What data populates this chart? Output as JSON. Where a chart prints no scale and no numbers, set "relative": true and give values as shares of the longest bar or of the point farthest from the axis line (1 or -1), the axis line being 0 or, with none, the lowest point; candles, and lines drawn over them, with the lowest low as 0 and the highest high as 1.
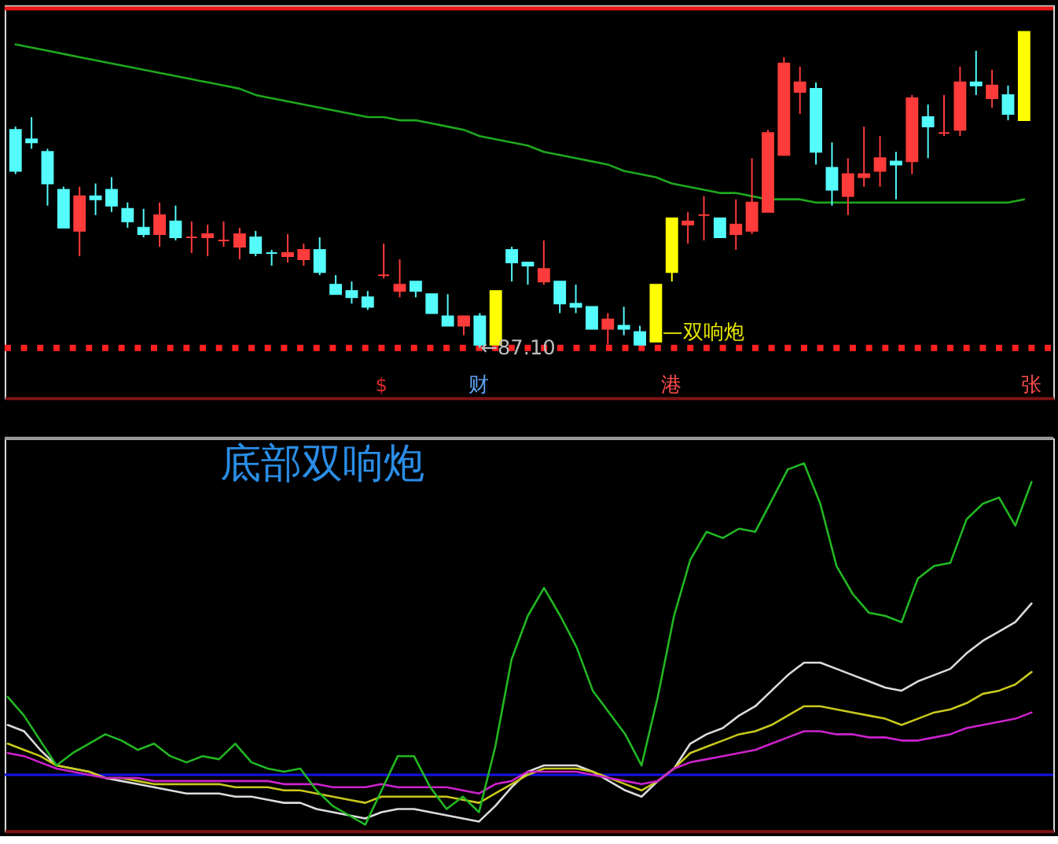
{
  "chart_data": [
    {
      "type": "candlestick",
      "relative": true,
      "tick_labels": false,
      "categories": [
        null,
        null,
        null,
        null,
        null,
        null,
        null,
        null,
        null,
        null,
        null,
        null,
        null,
        null,
        null,
        null,
        null,
        null,
        null,
        null,
        null,
        null,
        null,
        null,
        null,
        null,
        null,
        null,
        null,
        null,
        null,
        null,
        null,
        null,
        null,
        null,
        null,
        null,
        null,
        null,
        null,
        null,
        null,
        null,
        null,
        null,
        null,
        null,
        null,
        null,
        null,
        null,
        null,
        null,
        null,
        null,
        null,
        null,
        null,
        null,
        null,
        null,
        null,
        null
      ],
      "ohlc": [
        [
          0.69,
          0.7,
          0.55,
          0.56
        ],
        [
          0.66,
          0.73,
          0.63,
          0.65
        ],
        [
          0.62,
          0.63,
          0.45,
          0.52
        ],
        [
          0.5,
          0.51,
          0.38,
          0.38
        ],
        [
          0.37,
          0.51,
          0.29,
          0.48
        ],
        [
          0.48,
          0.52,
          0.42,
          0.47
        ],
        [
          0.5,
          0.54,
          0.43,
          0.45
        ],
        [
          0.44,
          0.46,
          0.38,
          0.4
        ],
        [
          0.38,
          0.44,
          0.35,
          0.36
        ],
        [
          0.36,
          0.46,
          0.32,
          0.42
        ],
        [
          0.4,
          0.45,
          0.34,
          0.35
        ],
        [
          0.35,
          0.4,
          0.3,
          0.35
        ],
        [
          0.35,
          0.39,
          0.29,
          0.36
        ],
        [
          0.34,
          0.4,
          0.32,
          0.34
        ],
        [
          0.32,
          0.38,
          0.28,
          0.36
        ],
        [
          0.35,
          0.37,
          0.29,
          0.3
        ],
        [
          0.3,
          0.31,
          0.26,
          0.3
        ],
        [
          0.29,
          0.36,
          0.27,
          0.3
        ],
        [
          0.28,
          0.33,
          0.26,
          0.31
        ],
        [
          0.31,
          0.35,
          0.23,
          0.24
        ],
        [
          0.2,
          0.23,
          0.17,
          0.17
        ],
        [
          0.18,
          0.21,
          0.14,
          0.16
        ],
        [
          0.16,
          0.18,
          0.12,
          0.13
        ],
        [
          0.23,
          0.33,
          0.22,
          0.23
        ],
        [
          0.18,
          0.28,
          0.16,
          0.2
        ],
        [
          0.21,
          0.21,
          0.16,
          0.18
        ],
        [
          0.17,
          0.17,
          0.11,
          0.11
        ],
        [
          0.1,
          0.17,
          0.07,
          0.07
        ],
        [
          0.07,
          0.1,
          0.04,
          0.1
        ],
        [
          0.1,
          0.11,
          0.0,
          0.01
        ],
        [
          0.01,
          0.18,
          0.01,
          0.18
        ],
        [
          0.31,
          0.32,
          0.21,
          0.27
        ],
        [
          0.27,
          0.27,
          0.2,
          0.26
        ],
        [
          0.21,
          0.34,
          0.2,
          0.25
        ],
        [
          0.21,
          0.21,
          0.11,
          0.14
        ],
        [
          0.14,
          0.2,
          0.11,
          0.13
        ],
        [
          0.13,
          0.13,
          0.06,
          0.06
        ],
        [
          0.06,
          0.11,
          0.01,
          0.09
        ],
        [
          0.07,
          0.13,
          0.04,
          0.06
        ],
        [
          0.05,
          0.07,
          0.01,
          0.01
        ],
        [
          0.02,
          0.2,
          0.02,
          0.2
        ],
        [
          0.24,
          0.41,
          0.21,
          0.41
        ],
        [
          0.39,
          0.43,
          0.33,
          0.4
        ],
        [
          0.42,
          0.48,
          0.34,
          0.42
        ],
        [
          0.41,
          0.41,
          0.35,
          0.35
        ],
        [
          0.36,
          0.47,
          0.31,
          0.39
        ],
        [
          0.37,
          0.6,
          0.36,
          0.46
        ],
        [
          0.43,
          0.69,
          0.43,
          0.68
        ],
        [
          0.61,
          0.92,
          0.61,
          0.9
        ],
        [
          0.81,
          0.89,
          0.74,
          0.84
        ],
        [
          0.82,
          0.84,
          0.58,
          0.62
        ],
        [
          0.57,
          0.65,
          0.45,
          0.5
        ],
        [
          0.48,
          0.6,
          0.42,
          0.55
        ],
        [
          0.54,
          0.7,
          0.51,
          0.55
        ],
        [
          0.56,
          0.67,
          0.51,
          0.6
        ],
        [
          0.59,
          0.62,
          0.47,
          0.58
        ],
        [
          0.59,
          0.8,
          0.55,
          0.79
        ],
        [
          0.73,
          0.77,
          0.6,
          0.7
        ],
        [
          0.68,
          0.8,
          0.67,
          0.68
        ],
        [
          0.69,
          0.89,
          0.67,
          0.84
        ],
        [
          0.84,
          0.94,
          0.8,
          0.83
        ],
        [
          0.79,
          0.88,
          0.76,
          0.83
        ],
        [
          0.8,
          0.83,
          0.72,
          0.74
        ],
        [
          0.72,
          1.0,
          0.72,
          1.0
        ]
      ],
      "colors": [
        "#54fcfc",
        "#54fcfc",
        "#54fcfc",
        "#54fcfc",
        "#ff3b3b",
        "#54fcfc",
        "#54fcfc",
        "#54fcfc",
        "#54fcfc",
        "#ff3b3b",
        "#54fcfc",
        "#ff3b3b",
        "#ff3b3b",
        "#ff3b3b",
        "#ff3b3b",
        "#54fcfc",
        "#54fcfc",
        "#ff3b3b",
        "#ff3b3b",
        "#54fcfc",
        "#54fcfc",
        "#54fcfc",
        "#54fcfc",
        "#ff3b3b",
        "#ff3b3b",
        "#54fcfc",
        "#54fcfc",
        "#54fcfc",
        "#ff3b3b",
        "#54fcfc",
        "#ffff00",
        "#54fcfc",
        "#54fcfc",
        "#ff3b3b",
        "#54fcfc",
        "#54fcfc",
        "#54fcfc",
        "#ff3b3b",
        "#54fcfc",
        "#54fcfc",
        "#ffff00",
        "#ffff00",
        "#ff3b3b",
        "#ff3b3b",
        "#54fcfc",
        "#ff3b3b",
        "#ff3b3b",
        "#ff3b3b",
        "#ff3b3b",
        "#ff3b3b",
        "#54fcfc",
        "#54fcfc",
        "#ff3b3b",
        "#ff3b3b",
        "#ff3b3b",
        "#54fcfc",
        "#ff3b3b",
        "#54fcfc",
        "#ff3b3b",
        "#ff3b3b",
        "#54fcfc",
        "#ff3b3b",
        "#54fcfc",
        "#ffff00"
      ],
      "series": [
        {
          "type": "line",
          "color": "#1ea81e",
          "values": [
            0.96,
            0.95,
            0.94,
            0.93,
            0.92,
            0.91,
            0.9,
            0.89,
            0.88,
            0.87,
            0.86,
            0.85,
            0.84,
            0.83,
            0.82,
            0.8,
            0.79,
            0.78,
            0.77,
            0.76,
            0.75,
            0.74,
            0.73,
            0.73,
            0.72,
            0.72,
            0.71,
            0.7,
            0.69,
            0.67,
            0.66,
            0.65,
            0.64,
            0.62,
            0.61,
            0.6,
            0.59,
            0.58,
            0.56,
            0.55,
            0.54,
            0.52,
            0.51,
            0.5,
            0.49,
            0.49,
            0.48,
            0.47,
            0.47,
            0.47,
            0.46,
            0.46,
            0.46,
            0.46,
            0.46,
            0.46,
            0.46,
            0.46,
            0.46,
            0.46,
            0.46,
            0.46,
            0.46,
            0.47
          ]
        }
      ],
      "ref_lines": [
        {
          "axis": "y",
          "value": 0,
          "color": "#ff2020",
          "line_style": "dotted"
        }
      ],
      "annotations": [
        {
          "text": "←87.10",
          "y": 0
        },
        "—双响炮",
        "$",
        "财",
        "港",
        "张"
      ]
    },
    {
      "type": "line",
      "relative": true,
      "tick_labels": false,
      "categories": [
        null,
        null,
        null,
        null,
        null,
        null,
        null,
        null,
        null,
        null,
        null,
        null,
        null,
        null,
        null,
        null,
        null,
        null,
        null,
        null,
        null,
        null,
        null,
        null,
        null,
        null,
        null,
        null,
        null,
        null,
        null,
        null,
        null,
        null,
        null,
        null,
        null,
        null,
        null,
        null,
        null,
        null,
        null,
        null,
        null,
        null,
        null,
        null,
        null,
        null,
        null,
        null,
        null,
        null,
        null,
        null,
        null,
        null,
        null,
        null,
        null,
        null,
        null,
        null
      ],
      "series": [
        {
          "color": "#dcdcdc",
          "values": [
            0.16,
            0.14,
            0.08,
            0.03,
            0.02,
            0.01,
            -0.01,
            -0.02,
            -0.03,
            -0.04,
            -0.05,
            -0.06,
            -0.06,
            -0.06,
            -0.07,
            -0.07,
            -0.08,
            -0.09,
            -0.09,
            -0.11,
            -0.12,
            -0.13,
            -0.14,
            -0.12,
            -0.11,
            -0.11,
            -0.12,
            -0.13,
            -0.14,
            -0.15,
            -0.1,
            -0.04,
            0.01,
            0.03,
            0.03,
            0.03,
            0.01,
            -0.02,
            -0.05,
            -0.07,
            -0.02,
            0.02,
            0.1,
            0.13,
            0.15,
            0.19,
            0.22,
            0.27,
            0.32,
            0.36,
            0.36,
            0.34,
            0.32,
            0.3,
            0.28,
            0.27,
            0.3,
            0.32,
            0.34,
            0.39,
            0.43,
            0.46,
            0.49,
            0.55
          ]
        },
        {
          "color": "#c8c81e",
          "values": [
            0.1,
            0.08,
            0.06,
            0.03,
            0.02,
            0.01,
            -0.01,
            -0.01,
            -0.02,
            -0.03,
            -0.03,
            -0.03,
            -0.03,
            -0.03,
            -0.04,
            -0.04,
            -0.04,
            -0.05,
            -0.05,
            -0.06,
            -0.07,
            -0.08,
            -0.09,
            -0.07,
            -0.07,
            -0.07,
            -0.07,
            -0.07,
            -0.08,
            -0.09,
            -0.06,
            -0.03,
            0.0,
            0.02,
            0.02,
            0.02,
            0.01,
            -0.01,
            -0.03,
            -0.05,
            -0.02,
            0.02,
            0.07,
            0.09,
            0.11,
            0.13,
            0.14,
            0.16,
            0.19,
            0.22,
            0.22,
            0.21,
            0.2,
            0.19,
            0.18,
            0.16,
            0.18,
            0.2,
            0.21,
            0.23,
            0.26,
            0.27,
            0.29,
            0.33
          ]
        },
        {
          "color": "#cc22cc",
          "values": [
            0.07,
            0.06,
            0.04,
            0.02,
            0.01,
            0.0,
            -0.01,
            -0.01,
            -0.01,
            -0.02,
            -0.02,
            -0.02,
            -0.02,
            -0.02,
            -0.02,
            -0.02,
            -0.02,
            -0.03,
            -0.03,
            -0.03,
            -0.04,
            -0.04,
            -0.04,
            -0.03,
            -0.04,
            -0.04,
            -0.04,
            -0.04,
            -0.05,
            -0.06,
            -0.03,
            -0.02,
            0.01,
            0.01,
            0.01,
            0.01,
            0.0,
            -0.01,
            -0.02,
            -0.03,
            -0.02,
            0.02,
            0.04,
            0.05,
            0.06,
            0.07,
            0.08,
            0.1,
            0.12,
            0.14,
            0.14,
            0.13,
            0.13,
            0.12,
            0.12,
            0.11,
            0.11,
            0.12,
            0.13,
            0.15,
            0.16,
            0.17,
            0.18,
            0.2
          ]
        },
        {
          "color": "#22b822",
          "values": [
            0.25,
            0.19,
            0.11,
            0.03,
            0.07,
            0.1,
            0.13,
            0.11,
            0.08,
            0.1,
            0.06,
            0.04,
            0.06,
            0.05,
            0.1,
            0.04,
            0.02,
            0.01,
            0.02,
            -0.05,
            -0.1,
            -0.13,
            -0.16,
            -0.05,
            0.06,
            0.06,
            -0.04,
            -0.11,
            -0.07,
            -0.12,
            0.09,
            0.37,
            0.51,
            0.6,
            0.51,
            0.41,
            0.27,
            0.2,
            0.13,
            0.03,
            0.25,
            0.51,
            0.69,
            0.78,
            0.76,
            0.79,
            0.78,
            0.88,
            0.98,
            1.0,
            0.87,
            0.67,
            0.58,
            0.52,
            0.51,
            0.49,
            0.63,
            0.67,
            0.68,
            0.82,
            0.87,
            0.89,
            0.8,
            0.94
          ]
        }
      ],
      "ref_lines": [
        {
          "axis": "y",
          "value": 0,
          "color": "#1414e6"
        }
      ],
      "annotations": [
        "底部双响炮"
      ]
    }
  ]
}
